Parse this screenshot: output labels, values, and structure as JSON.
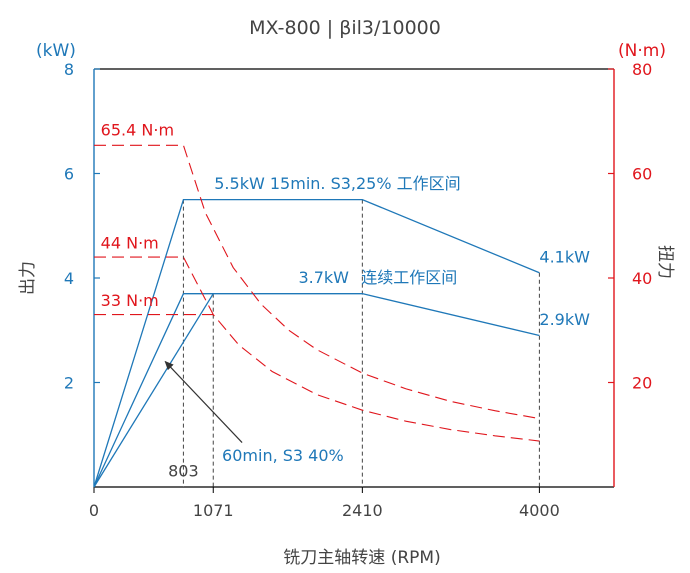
{
  "chart_data": {
    "type": "line",
    "title": "MX-800 | βil3/10000",
    "xlabel": "铣刀主轴转速 (RPM)",
    "x_ticks": [
      "0",
      "1071",
      "2410",
      "4000"
    ],
    "xlim": [
      0,
      4670
    ],
    "y_left": {
      "label": "出力",
      "unit": "(kW)",
      "ticks": [
        "2",
        "4",
        "6",
        "8"
      ],
      "ylim": [
        0,
        8
      ],
      "color": "#1f78b8"
    },
    "y_right": {
      "label": "扭力",
      "unit": "(N·m)",
      "ticks": [
        "20",
        "40",
        "60",
        "80"
      ],
      "ylim": [
        0,
        80
      ],
      "color": "#e0161d"
    },
    "series": [
      {
        "axis": "left",
        "style": "solid",
        "points": [
          [
            0,
            0
          ],
          [
            803,
            5.5
          ],
          [
            2410,
            5.5
          ],
          [
            4000,
            4.1
          ]
        ]
      },
      {
        "axis": "left",
        "style": "solid",
        "points": [
          [
            0,
            0
          ],
          [
            803,
            3.7
          ],
          [
            2410,
            3.7
          ],
          [
            4000,
            2.9
          ]
        ]
      },
      {
        "axis": "left",
        "style": "solid",
        "points": [
          [
            0,
            0
          ],
          [
            1071,
            3.7
          ]
        ]
      },
      {
        "axis": "right",
        "style": "dashed",
        "points": [
          [
            0,
            65.4
          ],
          [
            803,
            65.4
          ],
          [
            1000,
            52.5
          ],
          [
            1250,
            42
          ],
          [
            1500,
            35
          ],
          [
            1750,
            30
          ],
          [
            2000,
            26.3
          ],
          [
            2410,
            21.8
          ],
          [
            2800,
            18.8
          ],
          [
            3200,
            16.4
          ],
          [
            3600,
            14.6
          ],
          [
            4000,
            13.1
          ]
        ]
      },
      {
        "axis": "right",
        "style": "dashed",
        "points": [
          [
            0,
            44
          ],
          [
            803,
            44
          ],
          [
            1071,
            33
          ],
          [
            1300,
            27.2
          ],
          [
            1600,
            22.1
          ],
          [
            2000,
            17.7
          ],
          [
            2410,
            14.7
          ],
          [
            2800,
            12.6
          ],
          [
            3200,
            11.0
          ],
          [
            3600,
            9.8
          ],
          [
            4000,
            8.8
          ]
        ]
      },
      {
        "axis": "right",
        "style": "dashed",
        "points": [
          [
            0,
            33
          ],
          [
            1071,
            33
          ]
        ]
      }
    ],
    "vlines": [
      {
        "x": 803,
        "y_top": 5.5
      },
      {
        "x": 1071,
        "y_top": 3.7
      },
      {
        "x": 2410,
        "y_top": 5.5
      },
      {
        "x": 4000,
        "y_top": 4.1
      }
    ],
    "annotations": [
      {
        "text": "5.5kW 15min. S3,25% 工作区间",
        "color": "#1f78b8",
        "x": 1080,
        "y": 5.7,
        "axis": "left",
        "anchor": "start"
      },
      {
        "text": "3.7kW",
        "color": "#1f78b8",
        "x": 2290,
        "y": 3.9,
        "axis": "left",
        "anchor": "end"
      },
      {
        "text": "连续工作区间",
        "color": "#1f78b8",
        "x": 2400,
        "y": 3.9,
        "axis": "left",
        "anchor": "start"
      },
      {
        "text": "4.1kW",
        "color": "#1f78b8",
        "x": 4000,
        "y": 4.3,
        "axis": "left",
        "anchor": "start"
      },
      {
        "text": "2.9kW",
        "color": "#1f78b8",
        "x": 4000,
        "y": 3.1,
        "axis": "left",
        "anchor": "start"
      },
      {
        "text": "60min, S3 40%",
        "color": "#1f78b8",
        "x": 1150,
        "y": 0.5,
        "axis": "left",
        "anchor": "start"
      },
      {
        "text": "65.4 N·m",
        "color": "#e0161d",
        "x": 60,
        "y": 67.3,
        "axis": "right",
        "anchor": "start"
      },
      {
        "text": "44 N·m",
        "color": "#e0161d",
        "x": 60,
        "y": 45.6,
        "axis": "right",
        "anchor": "start"
      },
      {
        "text": "33 N·m",
        "color": "#e0161d",
        "x": 60,
        "y": 34.6,
        "axis": "right",
        "anchor": "start"
      },
      {
        "text": "803",
        "color": "#444444",
        "x": 803,
        "y": 0.2,
        "axis": "left",
        "anchor": "middle"
      }
    ],
    "arrow": {
      "from": [
        1330,
        0.85
      ],
      "to": [
        640,
        2.4
      ],
      "axis": "left"
    }
  }
}
